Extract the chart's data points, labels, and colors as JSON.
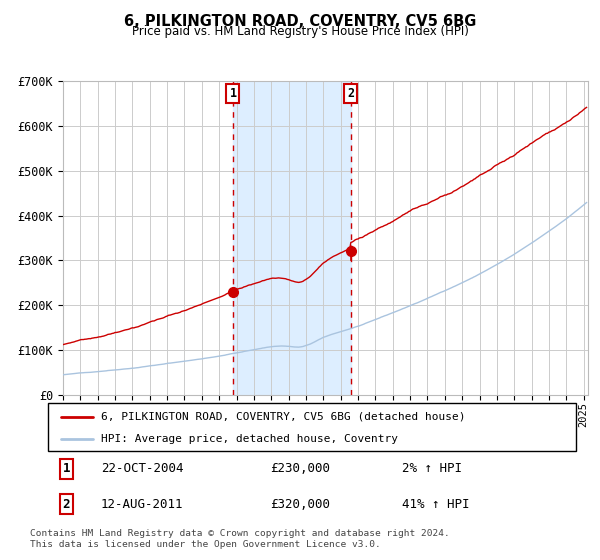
{
  "title": "6, PILKINGTON ROAD, COVENTRY, CV5 6BG",
  "subtitle": "Price paid vs. HM Land Registry's House Price Index (HPI)",
  "ylim": [
    0,
    700000
  ],
  "yticks": [
    0,
    100000,
    200000,
    300000,
    400000,
    500000,
    600000,
    700000
  ],
  "ytick_labels": [
    "£0",
    "£100K",
    "£200K",
    "£300K",
    "£400K",
    "£500K",
    "£600K",
    "£700K"
  ],
  "hpi_color": "#aac4df",
  "sale_color": "#cc0000",
  "bg_color": "#ffffff",
  "grid_color": "#cccccc",
  "shade_color": "#ddeeff",
  "sale1_year": 2004.792,
  "sale1_price": 230000,
  "sale2_year": 2011.583,
  "sale2_price": 320000,
  "annotation1": {
    "label": "1",
    "date": "22-OCT-2004",
    "price": 230000,
    "pct": "2%",
    "dir": "↑"
  },
  "annotation2": {
    "label": "2",
    "date": "12-AUG-2011",
    "price": 320000,
    "pct": "41%",
    "dir": "↑"
  },
  "legend_line1": "6, PILKINGTON ROAD, COVENTRY, CV5 6BG (detached house)",
  "legend_line2": "HPI: Average price, detached house, Coventry",
  "footer": "Contains HM Land Registry data © Crown copyright and database right 2024.\nThis data is licensed under the Open Government Licence v3.0.",
  "start_year": 1995.0,
  "end_year": 2025.25
}
